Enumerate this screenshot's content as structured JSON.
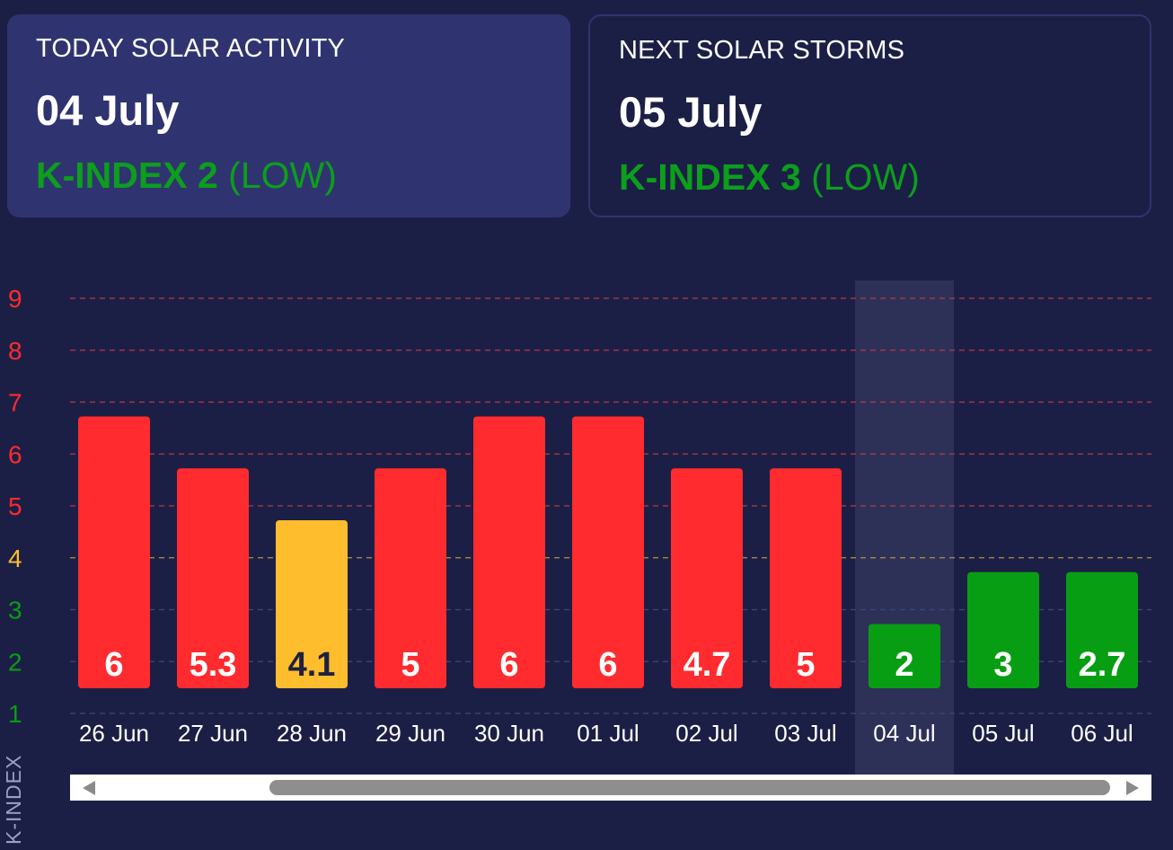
{
  "today": {
    "title": "TODAY SOLAR ACTIVITY",
    "date": "04 July",
    "kindex_label": "K-INDEX 2",
    "level": "(LOW)"
  },
  "next": {
    "title": "NEXT SOLAR STORMS",
    "date": "05 July",
    "kindex_label": "K-INDEX 3",
    "level": "(LOW)"
  },
  "colors": {
    "background": "#1c1f45",
    "card": "#2f3470",
    "high": "#ff2b2e",
    "moderate": "#fdbd2c",
    "low": "#089e13",
    "highlight": "#2e3157"
  },
  "chart_data": {
    "type": "bar",
    "ylabel": "K-INDEX",
    "ylim": [
      1,
      9
    ],
    "yticks": [
      1,
      2,
      3,
      4,
      5,
      6,
      7,
      8,
      9
    ],
    "grid": true,
    "highlight_category": "04 Jul",
    "categories": [
      "26 Jun",
      "27 Jun",
      "28 Jun",
      "29 Jun",
      "30 Jun",
      "01 Jul",
      "02 Jul",
      "03 Jul",
      "04 Jul",
      "05 Jul",
      "06 Jul"
    ],
    "values": [
      6,
      5.3,
      4.1,
      5,
      6,
      6,
      4.7,
      5,
      2,
      3,
      2.7
    ],
    "bar_levels": [
      7,
      6,
      5,
      6,
      7,
      7,
      6,
      6,
      3,
      4,
      4
    ],
    "bar_colors": [
      "#ff2b2e",
      "#ff2b2e",
      "#fdbd2c",
      "#ff2b2e",
      "#ff2b2e",
      "#ff2b2e",
      "#ff2b2e",
      "#ff2b2e",
      "#089e13",
      "#089e13",
      "#089e13"
    ]
  }
}
